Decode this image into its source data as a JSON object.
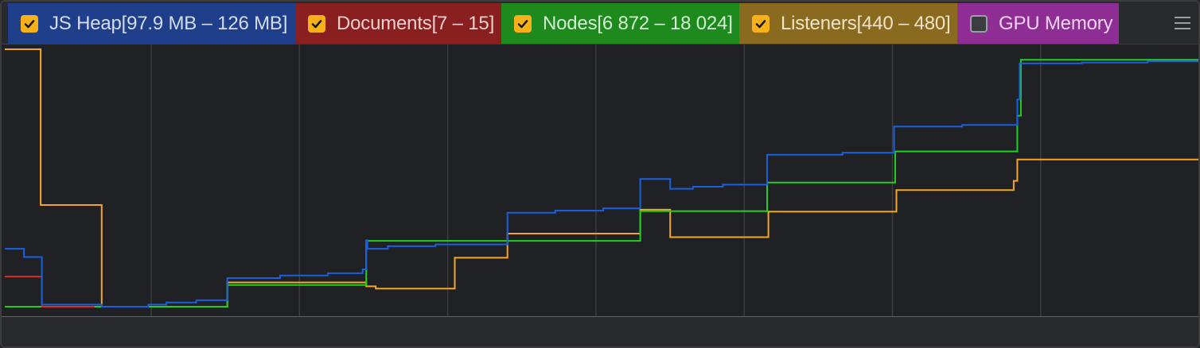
{
  "legend": {
    "items": [
      {
        "key": "js_heap",
        "label": "JS Heap[97.9 MB – 126 MB]",
        "checked": true,
        "bg": "#1f3f8a",
        "text": "#d6dcef"
      },
      {
        "key": "documents",
        "label": "Documents[7 – 15]",
        "checked": true,
        "bg": "#8a1f1f",
        "text": "#f0d0d0"
      },
      {
        "key": "nodes",
        "label": "Nodes[6 872 – 18 024]",
        "checked": true,
        "bg": "#1e8a1e",
        "text": "#d4f0d4"
      },
      {
        "key": "listeners",
        "label": "Listeners[440 – 480]",
        "checked": true,
        "bg": "#8a6a1e",
        "text": "#f0e4c8"
      },
      {
        "key": "gpu_memory",
        "label": "GPU Memory",
        "checked": false,
        "bg": "#8e2d93",
        "text": "#f0d4f2"
      }
    ],
    "menu_icon": "hamburger-menu-icon"
  },
  "colors": {
    "background": "#202124",
    "grid": "#3c3c3c",
    "js_heap": "#1a5fe0",
    "documents": "#d93025",
    "nodes": "#1ed11e",
    "listeners": "#f5a623",
    "checkbox": "#f9b11a"
  },
  "chart_data": {
    "type": "line",
    "step": true,
    "x_unit": "fraction of visible time range",
    "ylim": [
      0,
      1
    ],
    "y_unit": "each series normalized to its own legend range",
    "grid": "vertical",
    "series": [
      {
        "name": "Listeners",
        "key": "listeners",
        "points": [
          [
            0,
            1.0
          ],
          [
            0.03,
            1.0
          ],
          [
            0.03,
            0.395
          ],
          [
            0.081,
            0.395
          ],
          [
            0.081,
            0.0
          ],
          [
            0.186,
            0.0
          ],
          [
            0.186,
            0.094
          ],
          [
            0.302,
            0.094
          ],
          [
            0.302,
            0.079
          ],
          [
            0.31,
            0.079
          ],
          [
            0.31,
            0.07
          ],
          [
            0.376,
            0.07
          ],
          [
            0.376,
            0.19
          ],
          [
            0.42,
            0.19
          ],
          [
            0.42,
            0.284
          ],
          [
            0.531,
            0.284
          ],
          [
            0.531,
            0.377
          ],
          [
            0.556,
            0.377
          ],
          [
            0.556,
            0.27
          ],
          [
            0.638,
            0.27
          ],
          [
            0.638,
            0.369
          ],
          [
            0.745,
            0.369
          ],
          [
            0.745,
            0.453
          ],
          [
            0.843,
            0.453
          ],
          [
            0.843,
            0.489
          ],
          [
            0.846,
            0.489
          ],
          [
            0.846,
            0.572
          ],
          [
            1.0,
            0.572
          ]
        ]
      },
      {
        "name": "Nodes",
        "key": "nodes",
        "points": [
          [
            0,
            0.0
          ],
          [
            0.186,
            0.0
          ],
          [
            0.186,
            0.084
          ],
          [
            0.302,
            0.084
          ],
          [
            0.302,
            0.256
          ],
          [
            0.531,
            0.256
          ],
          [
            0.531,
            0.371
          ],
          [
            0.637,
            0.371
          ],
          [
            0.637,
            0.482
          ],
          [
            0.744,
            0.482
          ],
          [
            0.744,
            0.603
          ],
          [
            0.846,
            0.603
          ],
          [
            0.846,
            0.742
          ],
          [
            0.849,
            0.742
          ],
          [
            0.849,
            0.959
          ],
          [
            1.0,
            0.959
          ]
        ]
      },
      {
        "name": "Documents",
        "key": "documents",
        "points": [
          [
            0,
            0.117
          ],
          [
            0.031,
            0.117
          ],
          [
            0.031,
            0.0
          ],
          [
            0.075,
            0.0
          ]
        ]
      },
      {
        "name": "JS Heap",
        "key": "js_heap",
        "points": [
          [
            0,
            0.225
          ],
          [
            0.016,
            0.225
          ],
          [
            0.016,
            0.193
          ],
          [
            0.031,
            0.193
          ],
          [
            0.031,
            0.008
          ],
          [
            0.081,
            0.008
          ],
          [
            0.081,
            0.0
          ],
          [
            0.12,
            0.0
          ],
          [
            0.12,
            0.008
          ],
          [
            0.135,
            0.008
          ],
          [
            0.135,
            0.016
          ],
          [
            0.16,
            0.016
          ],
          [
            0.16,
            0.025
          ],
          [
            0.186,
            0.025
          ],
          [
            0.186,
            0.111
          ],
          [
            0.23,
            0.111
          ],
          [
            0.23,
            0.121
          ],
          [
            0.27,
            0.121
          ],
          [
            0.27,
            0.13
          ],
          [
            0.299,
            0.13
          ],
          [
            0.299,
            0.145
          ],
          [
            0.302,
            0.145
          ],
          [
            0.302,
            0.258
          ],
          [
            0.303,
            0.258
          ],
          [
            0.303,
            0.225
          ],
          [
            0.32,
            0.225
          ],
          [
            0.32,
            0.235
          ],
          [
            0.36,
            0.235
          ],
          [
            0.36,
            0.242
          ],
          [
            0.42,
            0.242
          ],
          [
            0.42,
            0.25
          ],
          [
            0.42,
            0.25
          ],
          [
            0.42,
            0.365
          ],
          [
            0.46,
            0.365
          ],
          [
            0.46,
            0.373
          ],
          [
            0.5,
            0.373
          ],
          [
            0.5,
            0.382
          ],
          [
            0.531,
            0.382
          ],
          [
            0.531,
            0.496
          ],
          [
            0.556,
            0.496
          ],
          [
            0.556,
            0.458
          ],
          [
            0.575,
            0.458
          ],
          [
            0.575,
            0.466
          ],
          [
            0.6,
            0.466
          ],
          [
            0.6,
            0.474
          ],
          [
            0.637,
            0.474
          ],
          [
            0.637,
            0.59
          ],
          [
            0.7,
            0.59
          ],
          [
            0.7,
            0.598
          ],
          [
            0.743,
            0.598
          ],
          [
            0.743,
            0.7
          ],
          [
            0.8,
            0.7
          ],
          [
            0.8,
            0.706
          ],
          [
            0.846,
            0.706
          ],
          [
            0.846,
            0.805
          ],
          [
            0.848,
            0.805
          ],
          [
            0.848,
            0.945
          ],
          [
            0.9,
            0.945
          ],
          [
            0.9,
            0.948
          ],
          [
            0.955,
            0.948
          ],
          [
            0.955,
            0.953
          ],
          [
            1.0,
            0.953
          ]
        ]
      }
    ]
  }
}
